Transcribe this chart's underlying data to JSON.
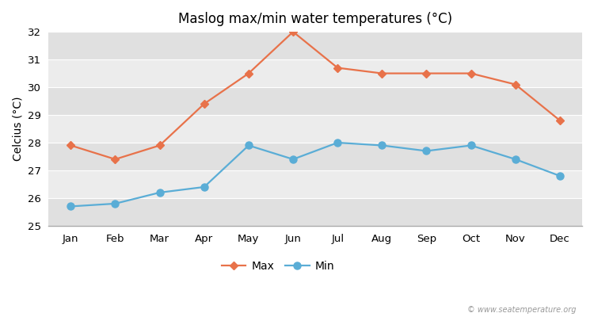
{
  "title": "Maslog max/min water temperatures (°C)",
  "ylabel": "Celcius (°C)",
  "months": [
    "Jan",
    "Feb",
    "Mar",
    "Apr",
    "May",
    "Jun",
    "Jul",
    "Aug",
    "Sep",
    "Oct",
    "Nov",
    "Dec"
  ],
  "max_values": [
    27.9,
    27.4,
    27.9,
    29.4,
    30.5,
    32.0,
    30.7,
    30.5,
    30.5,
    30.5,
    30.1,
    28.8
  ],
  "min_values": [
    25.7,
    25.8,
    26.2,
    26.4,
    27.9,
    27.4,
    28.0,
    27.9,
    27.7,
    27.9,
    27.4,
    26.8
  ],
  "max_color": "#e8724a",
  "min_color": "#5aadd6",
  "ylim": [
    25,
    32
  ],
  "yticks": [
    25,
    26,
    27,
    28,
    29,
    30,
    31,
    32
  ],
  "bg_color": "#ffffff",
  "plot_bg_light": "#ececec",
  "plot_bg_dark": "#e0e0e0",
  "watermark": "© www.seatemperature.org",
  "legend_max": "Max",
  "legend_min": "Min"
}
